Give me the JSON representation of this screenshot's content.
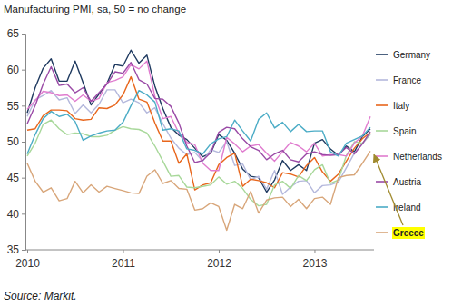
{
  "chart_data": {
    "type": "line",
    "title": "Manufacturing PMI, sa, 50 = no change",
    "annotations": [
      "Source: Markit."
    ],
    "categories": [
      "2010",
      null,
      null,
      null,
      null,
      null,
      null,
      null,
      null,
      null,
      null,
      null,
      "2011",
      null,
      null,
      null,
      null,
      null,
      null,
      null,
      null,
      null,
      null,
      null,
      "2012",
      null,
      null,
      null,
      null,
      null,
      null,
      null,
      null,
      null,
      null,
      null,
      "2013",
      null,
      null,
      null,
      null,
      null,
      null,
      null
    ],
    "ylim": [
      35,
      65
    ],
    "yticks": [
      35,
      40,
      45,
      50,
      55,
      60,
      65
    ],
    "grid": false,
    "legend": "right",
    "series": [
      {
        "name": "Germany",
        "color": "#1f3a60",
        "values": [
          54.0,
          57.5,
          60.2,
          61.5,
          58.4,
          58.4,
          61.2,
          58.2,
          55.1,
          56.6,
          58.1,
          60.7,
          60.5,
          62.7,
          60.9,
          62.0,
          57.7,
          54.6,
          52.0,
          50.9,
          50.3,
          49.1,
          47.9,
          48.4,
          51.0,
          50.2,
          48.4,
          46.2,
          45.2,
          45.0,
          43.0,
          44.7,
          47.4,
          46.0,
          46.8,
          46.0,
          49.8,
          50.3,
          49.0,
          48.1,
          49.4,
          48.6,
          50.7,
          51.8
        ]
      },
      {
        "name": "France",
        "color": "#b4b8dc",
        "values": [
          53.5,
          55.8,
          56.4,
          57.1,
          55.8,
          56.1,
          53.9,
          55.1,
          54.0,
          55.2,
          57.2,
          57.2,
          55.4,
          55.9,
          55.4,
          54.0,
          54.7,
          52.5,
          50.5,
          49.1,
          48.2,
          48.5,
          47.3,
          48.9,
          48.5,
          50.0,
          46.7,
          46.9,
          44.7,
          45.2,
          43.4,
          46.0,
          42.7,
          43.7,
          44.5,
          44.6,
          42.9,
          43.9,
          44.0,
          44.4,
          46.4,
          48.4,
          49.7,
          51.0
        ]
      },
      {
        "name": "Italy",
        "color": "#e8661c",
        "values": [
          51.6,
          51.8,
          53.6,
          54.4,
          54.4,
          54.3,
          53.2,
          53.0,
          53.1,
          54.7,
          54.6,
          55.1,
          56.5,
          59.0,
          55.9,
          55.5,
          52.6,
          50.1,
          50.1,
          47.0,
          48.3,
          43.3,
          44.0,
          44.3,
          46.8,
          47.8,
          48.4,
          43.8,
          44.8,
          44.6,
          44.3,
          43.6,
          45.7,
          45.5,
          45.1,
          46.7,
          47.8,
          45.8,
          44.5,
          45.5,
          47.3,
          49.1,
          50.4,
          51.3
        ]
      },
      {
        "name": "Spain",
        "color": "#a8d89a",
        "values": [
          48.0,
          49.8,
          52.4,
          53.0,
          51.8,
          51.0,
          51.2,
          51.1,
          50.7,
          50.7,
          50.9,
          51.6,
          52.1,
          51.8,
          51.7,
          51.2,
          49.4,
          47.3,
          45.2,
          45.3,
          43.7,
          43.6,
          43.8,
          44.0,
          45.1,
          44.1,
          44.5,
          43.5,
          42.0,
          41.1,
          41.3,
          44.0,
          44.5,
          43.5,
          45.3,
          44.6,
          46.1,
          46.8,
          44.2,
          44.7,
          48.1,
          50.0,
          49.8,
          51.1
        ]
      },
      {
        "name": "Netherlands",
        "color": "#e07ccf",
        "values": [
          54.5,
          55.7,
          57.0,
          56.8,
          56.4,
          56.5,
          55.6,
          56.5,
          55.6,
          56.0,
          58.2,
          58.5,
          59.0,
          60.7,
          60.1,
          61.2,
          56.3,
          53.2,
          53.5,
          51.2,
          49.9,
          49.6,
          47.0,
          46.0,
          46.0,
          50.6,
          49.7,
          48.6,
          49.4,
          49.6,
          48.4,
          47.3,
          48.6,
          49.9,
          49.4,
          48.6,
          49.8,
          48.0,
          48.2,
          48.2,
          48.0,
          49.8,
          50.8,
          53.5
        ]
      },
      {
        "name": "Austria",
        "color": "#9a4aa6",
        "values": [
          52.5,
          55.0,
          58.0,
          60.4,
          57.8,
          58.0,
          56.8,
          57.5,
          55.6,
          56.8,
          58.0,
          59.7,
          59.5,
          61.0,
          58.6,
          58.0,
          56.0,
          55.9,
          54.9,
          52.6,
          49.4,
          47.1,
          47.4,
          48.5,
          51.3,
          52.0,
          51.8,
          50.4,
          49.3,
          48.8,
          47.5,
          48.3,
          48.8,
          47.5,
          47.2,
          48.3,
          48.6,
          48.2,
          48.1,
          48.2,
          49.2,
          48.3,
          49.7,
          51.4
        ]
      },
      {
        "name": "Ireland",
        "color": "#4bacc6",
        "values": [
          48.3,
          51.0,
          53.2,
          54.2,
          53.5,
          53.8,
          52.8,
          50.2,
          50.8,
          51.2,
          51.5,
          51.6,
          52.7,
          55.0,
          57.1,
          56.5,
          55.5,
          51.6,
          51.8,
          51.5,
          49.0,
          48.8,
          48.3,
          49.7,
          50.4,
          50.7,
          53.0,
          51.5,
          50.1,
          53.1,
          54.0,
          51.9,
          52.7,
          51.4,
          52.4,
          51.4,
          51.5,
          51.5,
          48.6,
          48.0,
          49.8,
          50.3,
          50.8,
          52.0
        ]
      },
      {
        "name": "Greece",
        "color": "#d8a67a",
        "values": [
          47.0,
          44.5,
          43.0,
          43.6,
          41.8,
          42.1,
          44.5,
          42.9,
          44.0,
          43.0,
          43.8,
          43.5,
          43.2,
          42.9,
          42.8,
          45.2,
          46.1,
          44.2,
          44.6,
          43.5,
          43.4,
          40.5,
          40.7,
          41.5,
          41.0,
          37.7,
          41.3,
          40.7,
          43.1,
          40.1,
          41.9,
          42.2,
          42.3,
          41.0,
          42.0,
          40.7,
          42.1,
          42.3,
          41.3,
          45.0,
          45.3,
          45.4,
          47.0,
          48.7
        ]
      }
    ]
  }
}
